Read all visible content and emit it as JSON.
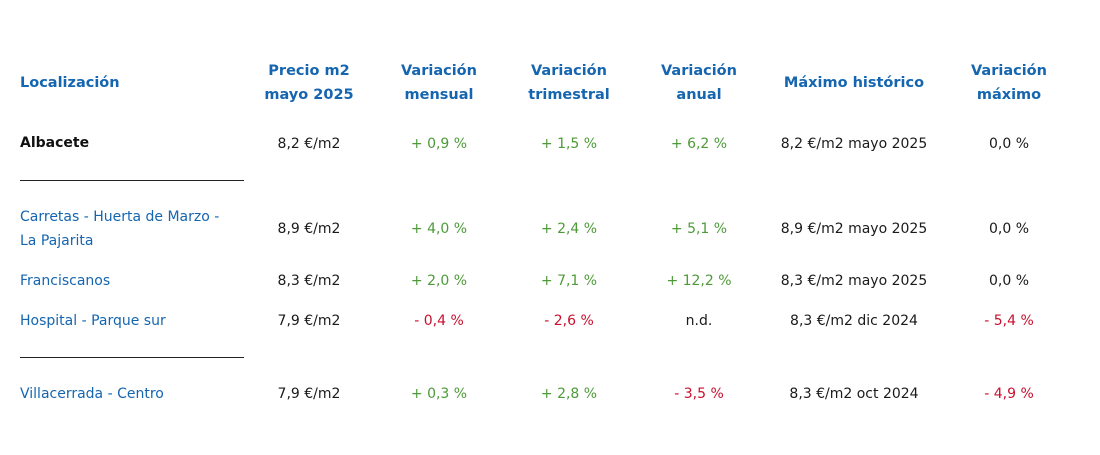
{
  "colors": {
    "header": "#1565b0",
    "positive": "#4e9a3a",
    "negative": "#c8102e",
    "text": "#1a1a1a"
  },
  "headers": {
    "location": "Localización",
    "price": [
      "Precio m2",
      "mayo 2025"
    ],
    "monthly": [
      "Variación",
      "mensual"
    ],
    "quarterly": [
      "Variación",
      "trimestral"
    ],
    "annual": [
      "Variación",
      "anual"
    ],
    "max_hist": "Máximo histórico",
    "var_max": [
      "Variación",
      "máximo"
    ]
  },
  "rows": [
    {
      "location": [
        "Albacete"
      ],
      "price": "8,2 €/m2",
      "monthly": "+ 0,9 %",
      "quarterly": "+ 1,5 %",
      "annual": "+ 6,2 %",
      "max_hist": "8,2 €/m2 mayo 2025",
      "var_max": "0,0 %"
    },
    {
      "location": [
        "Carretas - Huerta de Marzo -",
        "La Pajarita"
      ],
      "price": "8,9 €/m2",
      "monthly": "+ 4,0 %",
      "quarterly": "+ 2,4 %",
      "annual": "+ 5,1 %",
      "max_hist": "8,9 €/m2 mayo 2025",
      "var_max": "0,0 %"
    },
    {
      "location": [
        "Franciscanos"
      ],
      "price": "8,3 €/m2",
      "monthly": "+ 2,0 %",
      "quarterly": "+ 7,1 %",
      "annual": "+ 12,2 %",
      "max_hist": "8,3 €/m2 mayo 2025",
      "var_max": "0,0 %"
    },
    {
      "location": [
        "Hospital - Parque sur"
      ],
      "price": "7,9 €/m2",
      "monthly": "- 0,4 %",
      "quarterly": "- 2,6 %",
      "annual": "n.d.",
      "max_hist": "8,3 €/m2 dic 2024",
      "var_max": "- 5,4 %"
    },
    {
      "location": [
        "Villacerrada - Centro"
      ],
      "price": "7,9 €/m2",
      "monthly": "+ 0,3 %",
      "quarterly": "+ 2,8 %",
      "annual": "- 3,5 %",
      "max_hist": "8,3 €/m2 oct 2024",
      "var_max": "- 4,9 %"
    }
  ]
}
